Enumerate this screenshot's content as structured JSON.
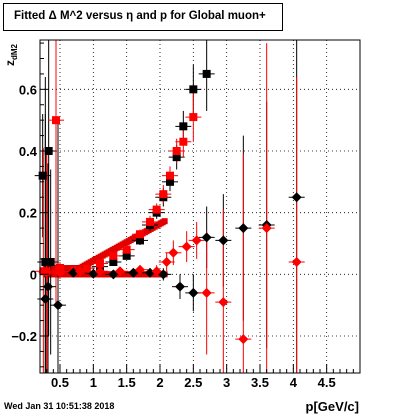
{
  "chart_data": {
    "type": "scatter",
    "title": "Fitted Δ M^2 versus η and p for Global muon+",
    "xlabel": "p[GeV/c]",
    "ylabel": "z",
    "ylabel_sub": "dM2",
    "xlim": [
      0.2,
      5.0
    ],
    "ylim": [
      -0.32,
      0.76
    ],
    "x_ticks": [
      0.5,
      1,
      1.5,
      2,
      2.5,
      3,
      3.5,
      4,
      4.5
    ],
    "x_tick_labels": [
      "0.5",
      "1",
      "1.5",
      "2",
      "2.5",
      "3",
      "3.5",
      "4",
      "4.5"
    ],
    "y_ticks": [
      -0.2,
      0,
      0.2,
      0.4,
      0.6
    ],
    "y_tick_labels": [
      "−0.2",
      "0",
      "0.2",
      "0.4",
      "0.6"
    ],
    "grid": true,
    "series": [
      {
        "color": "#000000",
        "marker": "square",
        "points": [
          {
            "x": 0.24,
            "y": 0.32,
            "yerr": 0.2
          },
          {
            "x": 0.28,
            "y": 0.04,
            "yerr": 0.6
          },
          {
            "x": 0.33,
            "y": 0.4,
            "yerr": 0.6
          },
          {
            "x": 0.36,
            "y": 0.04,
            "yerr": 0.3
          },
          {
            "x": 0.5,
            "y": 0.02,
            "yerr": 0.02
          },
          {
            "x": 0.7,
            "y": 0.015,
            "yerr": 0.01
          },
          {
            "x": 0.9,
            "y": 0.02,
            "yerr": 0.01
          },
          {
            "x": 1.1,
            "y": 0.025,
            "yerr": 0.01
          },
          {
            "x": 1.3,
            "y": 0.04,
            "yerr": 0.01
          },
          {
            "x": 1.5,
            "y": 0.06,
            "yerr": 0.01
          },
          {
            "x": 1.7,
            "y": 0.11,
            "yerr": 0.015
          },
          {
            "x": 1.85,
            "y": 0.16,
            "yerr": 0.02
          },
          {
            "x": 1.95,
            "y": 0.2,
            "yerr": 0.02
          },
          {
            "x": 2.05,
            "y": 0.25,
            "yerr": 0.03
          },
          {
            "x": 2.15,
            "y": 0.3,
            "yerr": 0.03
          },
          {
            "x": 2.25,
            "y": 0.38,
            "yerr": 0.04
          },
          {
            "x": 2.35,
            "y": 0.48,
            "yerr": 0.05
          },
          {
            "x": 2.5,
            "y": 0.6,
            "yerr": 0.08
          },
          {
            "x": 2.7,
            "y": 0.65,
            "yerr": 0.12
          }
        ]
      },
      {
        "color": "#ff0000",
        "marker": "square",
        "points": [
          {
            "x": 0.25,
            "y": 0.01,
            "yerr": 0.4
          },
          {
            "x": 0.3,
            "y": 0.01,
            "yerr": 0.4
          },
          {
            "x": 0.44,
            "y": 0.5,
            "yerr": 0.6
          },
          {
            "x": 0.5,
            "y": 0.02,
            "yerr": 0.02
          },
          {
            "x": 0.7,
            "y": 0.015,
            "yerr": 0.01
          },
          {
            "x": 0.9,
            "y": 0.02,
            "yerr": 0.01
          },
          {
            "x": 1.1,
            "y": 0.035,
            "yerr": 0.01
          },
          {
            "x": 1.3,
            "y": 0.06,
            "yerr": 0.01
          },
          {
            "x": 1.5,
            "y": 0.08,
            "yerr": 0.01
          },
          {
            "x": 1.7,
            "y": 0.13,
            "yerr": 0.015
          },
          {
            "x": 1.85,
            "y": 0.17,
            "yerr": 0.02
          },
          {
            "x": 1.95,
            "y": 0.21,
            "yerr": 0.02
          },
          {
            "x": 2.05,
            "y": 0.26,
            "yerr": 0.03
          },
          {
            "x": 2.15,
            "y": 0.32,
            "yerr": 0.03
          },
          {
            "x": 2.25,
            "y": 0.4,
            "yerr": 0.04
          },
          {
            "x": 2.35,
            "y": 0.43,
            "yerr": 0.05
          },
          {
            "x": 2.5,
            "y": 0.51,
            "yerr": 0.08
          }
        ]
      },
      {
        "color": "#000000",
        "marker": "diamond",
        "points": [
          {
            "x": 0.28,
            "y": -0.08,
            "yerr": 0.6
          },
          {
            "x": 0.32,
            "y": -0.04,
            "yerr": 0.4
          },
          {
            "x": 0.47,
            "y": -0.1,
            "yerr": 0.6
          },
          {
            "x": 0.7,
            "y": 0.005,
            "yerr": 0.01
          },
          {
            "x": 1.0,
            "y": 0.002,
            "yerr": 0.01
          },
          {
            "x": 1.3,
            "y": 0.0,
            "yerr": 0.01
          },
          {
            "x": 1.6,
            "y": 0.005,
            "yerr": 0.01
          },
          {
            "x": 1.85,
            "y": 0.005,
            "yerr": 0.015
          },
          {
            "x": 2.05,
            "y": 0.0,
            "yerr": 0.02
          },
          {
            "x": 2.3,
            "y": -0.04,
            "yerr": 0.04
          },
          {
            "x": 2.5,
            "y": -0.06,
            "yerr": 0.06
          },
          {
            "x": 2.7,
            "y": 0.12,
            "yerr": 0.1
          },
          {
            "x": 2.95,
            "y": 0.11,
            "yerr": 0.15
          },
          {
            "x": 3.25,
            "y": 0.15,
            "yerr": 0.3
          },
          {
            "x": 3.6,
            "y": 0.16,
            "yerr": 0.4
          },
          {
            "x": 4.05,
            "y": 0.25,
            "yerr": 0.6
          }
        ]
      },
      {
        "color": "#ff0000",
        "marker": "diamond",
        "points": [
          {
            "x": 0.3,
            "y": 0.005,
            "yerr": 0.4
          },
          {
            "x": 0.5,
            "y": 0.005,
            "yerr": 0.02
          },
          {
            "x": 0.8,
            "y": 0.01,
            "yerr": 0.01
          },
          {
            "x": 1.1,
            "y": 0.01,
            "yerr": 0.01
          },
          {
            "x": 1.4,
            "y": 0.01,
            "yerr": 0.01
          },
          {
            "x": 1.7,
            "y": 0.015,
            "yerr": 0.015
          },
          {
            "x": 1.95,
            "y": 0.01,
            "yerr": 0.02
          },
          {
            "x": 2.1,
            "y": 0.04,
            "yerr": 0.03
          },
          {
            "x": 2.2,
            "y": 0.07,
            "yerr": 0.04
          },
          {
            "x": 2.4,
            "y": 0.09,
            "yerr": 0.05
          },
          {
            "x": 2.55,
            "y": 0.11,
            "yerr": 0.06
          },
          {
            "x": 2.7,
            "y": -0.06,
            "yerr": 0.2
          },
          {
            "x": 2.95,
            "y": -0.09,
            "yerr": 0.3
          },
          {
            "x": 3.25,
            "y": -0.21,
            "yerr": 0.6
          },
          {
            "x": 3.6,
            "y": 0.15,
            "yerr": 0.6
          },
          {
            "x": 4.05,
            "y": 0.04,
            "yerr": 0.6
          }
        ]
      }
    ]
  },
  "footer": {
    "timestamp": "Wed Jan 31 10:51:38 2018"
  }
}
